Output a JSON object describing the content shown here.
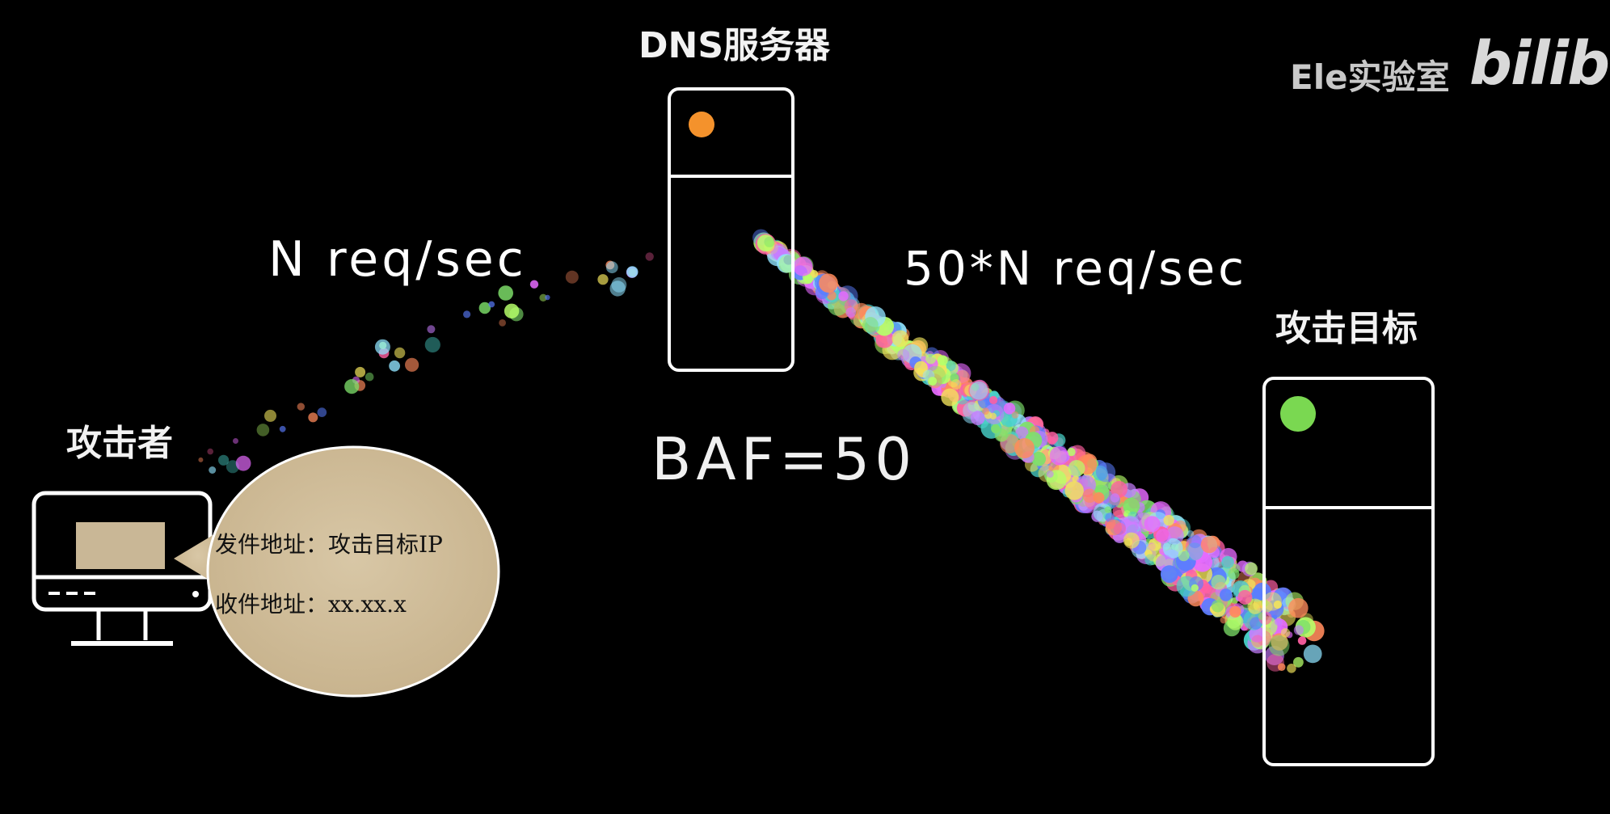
{
  "dns_server": {
    "label": "DNS服务器",
    "indicator_color": "#f4922c"
  },
  "target_server": {
    "label": "攻击目标",
    "indicator_color": "#7ad851"
  },
  "attacker": {
    "label": "攻击者"
  },
  "flows": {
    "incoming_rate": "N req/sec",
    "outgoing_rate": "50*N req/sec",
    "baf": "BAF=50"
  },
  "packet": {
    "from_line": "发件地址：攻击目标IP",
    "to_line": "收件地址：xx.xx.x"
  },
  "watermark": {
    "channel": "Ele实验室",
    "brand": "bilibili"
  }
}
